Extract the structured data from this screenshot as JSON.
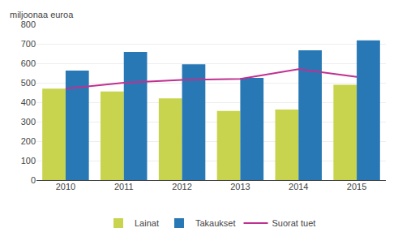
{
  "chart_data": {
    "type": "bar",
    "ylabel": "miljoonaa euroa",
    "categories": [
      "2010",
      "2011",
      "2012",
      "2013",
      "2014",
      "2015"
    ],
    "series": [
      {
        "name": "Lainat",
        "type": "bar",
        "color": "#c8d44e",
        "values": [
          470,
          455,
          420,
          355,
          362,
          490
        ]
      },
      {
        "name": "Takaukset",
        "type": "bar",
        "color": "#2878b5",
        "values": [
          562,
          658,
          595,
          525,
          667,
          718
        ]
      },
      {
        "name": "Suorat tuet",
        "type": "line",
        "color": "#c03090",
        "values": [
          470,
          500,
          515,
          520,
          570,
          530
        ]
      }
    ],
    "ylim": [
      0,
      800
    ],
    "yticks": [
      0,
      100,
      200,
      300,
      400,
      500,
      600,
      700,
      800
    ],
    "grid": true,
    "legend": "bottom"
  }
}
